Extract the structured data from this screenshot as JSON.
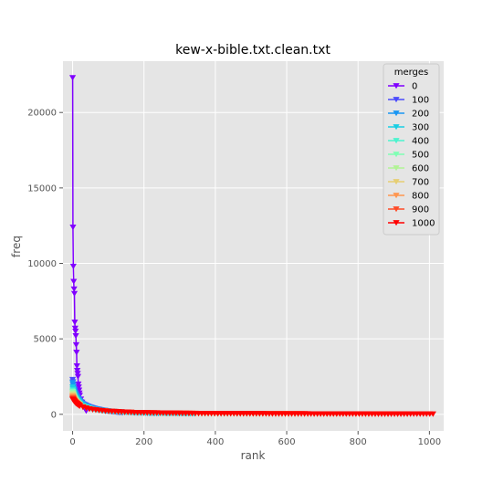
{
  "chart_data": {
    "type": "line",
    "title": "kew-x-bible.txt.clean.txt",
    "xlabel": "rank",
    "ylabel": "freq",
    "xlim": [
      -27,
      1040
    ],
    "ylim": [
      -1100,
      23400
    ],
    "xticks": [
      0,
      200,
      400,
      600,
      800,
      1000
    ],
    "yticks": [
      0,
      5000,
      10000,
      15000,
      20000
    ],
    "grid": true,
    "legend_title": "merges",
    "legend_position": "top-right",
    "marker": "down-triangle",
    "series": [
      {
        "name": "0",
        "color": "#8000ff",
        "max_rank": 40,
        "points": [
          [
            0,
            22300
          ],
          [
            1,
            12400
          ],
          [
            2,
            9800
          ],
          [
            3,
            8800
          ],
          [
            4,
            8300
          ],
          [
            5,
            8000
          ],
          [
            6,
            6100
          ],
          [
            7,
            5700
          ],
          [
            8,
            5500
          ],
          [
            9,
            5200
          ],
          [
            10,
            4600
          ],
          [
            11,
            4100
          ],
          [
            12,
            3200
          ],
          [
            13,
            2900
          ],
          [
            14,
            2700
          ],
          [
            15,
            2500
          ],
          [
            16,
            2000
          ],
          [
            17,
            1800
          ],
          [
            18,
            1600
          ],
          [
            19,
            1400
          ],
          [
            20,
            1250
          ],
          [
            22,
            1050
          ],
          [
            24,
            950
          ],
          [
            26,
            800
          ],
          [
            28,
            700
          ],
          [
            30,
            600
          ],
          [
            33,
            450
          ],
          [
            36,
            300
          ],
          [
            40,
            150
          ]
        ]
      },
      {
        "name": "100",
        "color": "#4b4bfc",
        "max_rank": 140,
        "points": [
          [
            0,
            2300
          ],
          [
            2,
            2000
          ],
          [
            4,
            1700
          ],
          [
            6,
            1550
          ],
          [
            8,
            1400
          ],
          [
            10,
            1300
          ],
          [
            14,
            1100
          ],
          [
            18,
            950
          ],
          [
            24,
            800
          ],
          [
            30,
            680
          ],
          [
            40,
            560
          ],
          [
            50,
            470
          ],
          [
            60,
            400
          ],
          [
            70,
            340
          ],
          [
            85,
            270
          ],
          [
            100,
            210
          ],
          [
            120,
            150
          ],
          [
            140,
            110
          ]
        ]
      },
      {
        "name": "200",
        "color": "#1996f3",
        "max_rank": 240,
        "points": [
          [
            0,
            2100
          ],
          [
            3,
            1700
          ],
          [
            6,
            1450
          ],
          [
            10,
            1200
          ],
          [
            15,
            1000
          ],
          [
            20,
            850
          ],
          [
            30,
            650
          ],
          [
            45,
            470
          ],
          [
            60,
            370
          ],
          [
            80,
            280
          ],
          [
            100,
            220
          ],
          [
            130,
            160
          ],
          [
            160,
            120
          ],
          [
            200,
            80
          ],
          [
            240,
            55
          ]
        ]
      },
      {
        "name": "300",
        "color": "#1acee3",
        "max_rank": 340,
        "points": [
          [
            0,
            1800
          ],
          [
            4,
            1350
          ],
          [
            8,
            1100
          ],
          [
            14,
            900
          ],
          [
            22,
            720
          ],
          [
            35,
            520
          ],
          [
            55,
            360
          ],
          [
            80,
            260
          ],
          [
            110,
            190
          ],
          [
            150,
            130
          ],
          [
            200,
            90
          ],
          [
            260,
            60
          ],
          [
            340,
            40
          ]
        ]
      },
      {
        "name": "400",
        "color": "#4df3ce",
        "max_rank": 440,
        "points": [
          [
            0,
            1600
          ],
          [
            4,
            1200
          ],
          [
            10,
            900
          ],
          [
            20,
            650
          ],
          [
            35,
            460
          ],
          [
            60,
            300
          ],
          [
            100,
            180
          ],
          [
            150,
            120
          ],
          [
            220,
            80
          ],
          [
            300,
            55
          ],
          [
            380,
            40
          ],
          [
            440,
            30
          ]
        ]
      },
      {
        "name": "500",
        "color": "#80ffb4",
        "max_rank": 540,
        "points": [
          [
            0,
            1500
          ],
          [
            5,
            1100
          ],
          [
            12,
            800
          ],
          [
            25,
            560
          ],
          [
            45,
            380
          ],
          [
            80,
            230
          ],
          [
            130,
            140
          ],
          [
            200,
            90
          ],
          [
            300,
            60
          ],
          [
            420,
            40
          ],
          [
            540,
            28
          ]
        ]
      },
      {
        "name": "600",
        "color": "#b2f396",
        "max_rank": 640,
        "points": [
          [
            0,
            1400
          ],
          [
            5,
            1000
          ],
          [
            14,
            720
          ],
          [
            30,
            480
          ],
          [
            55,
            320
          ],
          [
            100,
            190
          ],
          [
            170,
            110
          ],
          [
            260,
            70
          ],
          [
            380,
            45
          ],
          [
            520,
            32
          ],
          [
            640,
            24
          ]
        ]
      },
      {
        "name": "700",
        "color": "#e6ce73",
        "max_rank": 740,
        "points": [
          [
            0,
            1300
          ],
          [
            6,
            950
          ],
          [
            16,
            660
          ],
          [
            35,
            430
          ],
          [
            65,
            280
          ],
          [
            120,
            160
          ],
          [
            200,
            95
          ],
          [
            320,
            60
          ],
          [
            460,
            40
          ],
          [
            600,
            30
          ],
          [
            740,
            22
          ]
        ]
      },
      {
        "name": "800",
        "color": "#ff964f",
        "max_rank": 840,
        "points": [
          [
            0,
            1200
          ],
          [
            6,
            880
          ],
          [
            18,
            600
          ],
          [
            40,
            390
          ],
          [
            75,
            250
          ],
          [
            140,
            140
          ],
          [
            240,
            82
          ],
          [
            380,
            52
          ],
          [
            540,
            36
          ],
          [
            700,
            27
          ],
          [
            840,
            20
          ]
        ]
      },
      {
        "name": "900",
        "color": "#ff4b27",
        "max_rank": 940,
        "points": [
          [
            0,
            1100
          ],
          [
            7,
            820
          ],
          [
            20,
            560
          ],
          [
            45,
            360
          ],
          [
            85,
            230
          ],
          [
            160,
            125
          ],
          [
            280,
            72
          ],
          [
            440,
            46
          ],
          [
            620,
            32
          ],
          [
            790,
            24
          ],
          [
            940,
            18
          ]
        ]
      },
      {
        "name": "1000",
        "color": "#ff0000",
        "max_rank": 1013,
        "points": [
          [
            0,
            1000
          ],
          [
            8,
            760
          ],
          [
            22,
            520
          ],
          [
            50,
            330
          ],
          [
            95,
            210
          ],
          [
            180,
            110
          ],
          [
            320,
            62
          ],
          [
            500,
            40
          ],
          [
            700,
            28
          ],
          [
            880,
            21
          ],
          [
            1013,
            16
          ]
        ]
      }
    ]
  }
}
